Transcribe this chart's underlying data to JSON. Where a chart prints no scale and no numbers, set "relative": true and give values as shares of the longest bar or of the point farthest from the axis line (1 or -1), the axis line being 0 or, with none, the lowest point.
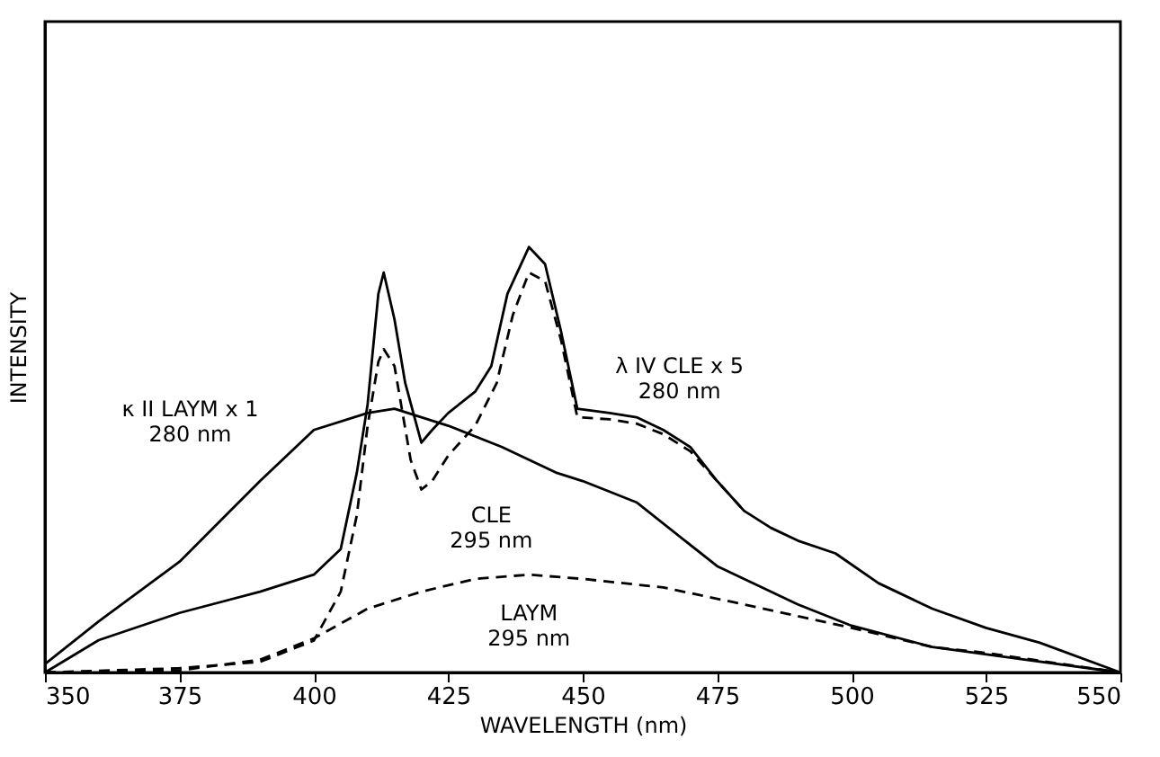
{
  "chart_data": {
    "type": "line",
    "relative": true,
    "xlabel": "WAVELENGTH (nm)",
    "ylabel": "INTENSITY",
    "xlim": [
      350,
      550
    ],
    "xticks": [
      350,
      375,
      400,
      425,
      450,
      475,
      500,
      525,
      550
    ],
    "grid": false,
    "marker": "none",
    "series": [
      {
        "name": "κ II LAYM x 1\n280 nm",
        "color": "#000000",
        "line_style": "solid",
        "x": [
          350,
          360,
          375,
          390,
          400,
          410,
          415,
          425,
          435,
          445,
          450,
          460,
          475,
          490,
          500,
          515,
          530,
          550
        ],
        "values": [
          0.02,
          0.12,
          0.26,
          0.45,
          0.57,
          0.61,
          0.62,
          0.58,
          0.53,
          0.47,
          0.45,
          0.4,
          0.25,
          0.16,
          0.11,
          0.06,
          0.034,
          0
        ]
      },
      {
        "name": "λ IV CLE x 5\n280 nm",
        "color": "#000000",
        "line_style": "solid",
        "x": [
          350,
          360,
          375,
          390,
          400,
          405,
          408,
          410,
          412,
          413,
          415,
          417,
          420,
          422,
          425,
          430,
          433,
          436,
          440,
          443,
          446,
          449,
          455,
          460,
          465,
          470,
          475,
          480,
          485,
          490,
          497,
          505,
          515,
          525,
          535,
          550
        ],
        "values": [
          0,
          0.076,
          0.14,
          0.19,
          0.23,
          0.29,
          0.47,
          0.63,
          0.89,
          0.94,
          0.83,
          0.68,
          0.54,
          0.57,
          0.61,
          0.66,
          0.72,
          0.89,
          1.0,
          0.96,
          0.8,
          0.62,
          0.61,
          0.6,
          0.57,
          0.53,
          0.45,
          0.38,
          0.34,
          0.31,
          0.28,
          0.21,
          0.15,
          0.105,
          0.07,
          0
        ]
      },
      {
        "name": "CLE\n295 nm",
        "color": "#000000",
        "line_style": "dashed",
        "x": [
          350,
          375,
          390,
          400,
          405,
          408,
          410,
          412,
          413,
          415,
          418,
          420,
          422,
          425,
          430,
          434,
          437,
          440,
          443,
          446,
          449,
          455,
          460,
          465,
          470,
          475,
          480
        ],
        "values": [
          0,
          0.01,
          0.025,
          0.075,
          0.19,
          0.37,
          0.58,
          0.73,
          0.76,
          0.72,
          0.5,
          0.43,
          0.45,
          0.51,
          0.58,
          0.68,
          0.84,
          0.94,
          0.92,
          0.78,
          0.6,
          0.595,
          0.585,
          0.56,
          0.52,
          0.45,
          0.38
        ]
      },
      {
        "name": "LAYM\n295 nm",
        "color": "#000000",
        "line_style": "dashed",
        "x": [
          350,
          375,
          390,
          400,
          410,
          420,
          430,
          440,
          450,
          465,
          480,
          500,
          515,
          525,
          550
        ],
        "values": [
          0,
          0.005,
          0.03,
          0.08,
          0.15,
          0.19,
          0.22,
          0.23,
          0.22,
          0.2,
          0.16,
          0.105,
          0.06,
          0.046,
          0
        ]
      }
    ]
  }
}
